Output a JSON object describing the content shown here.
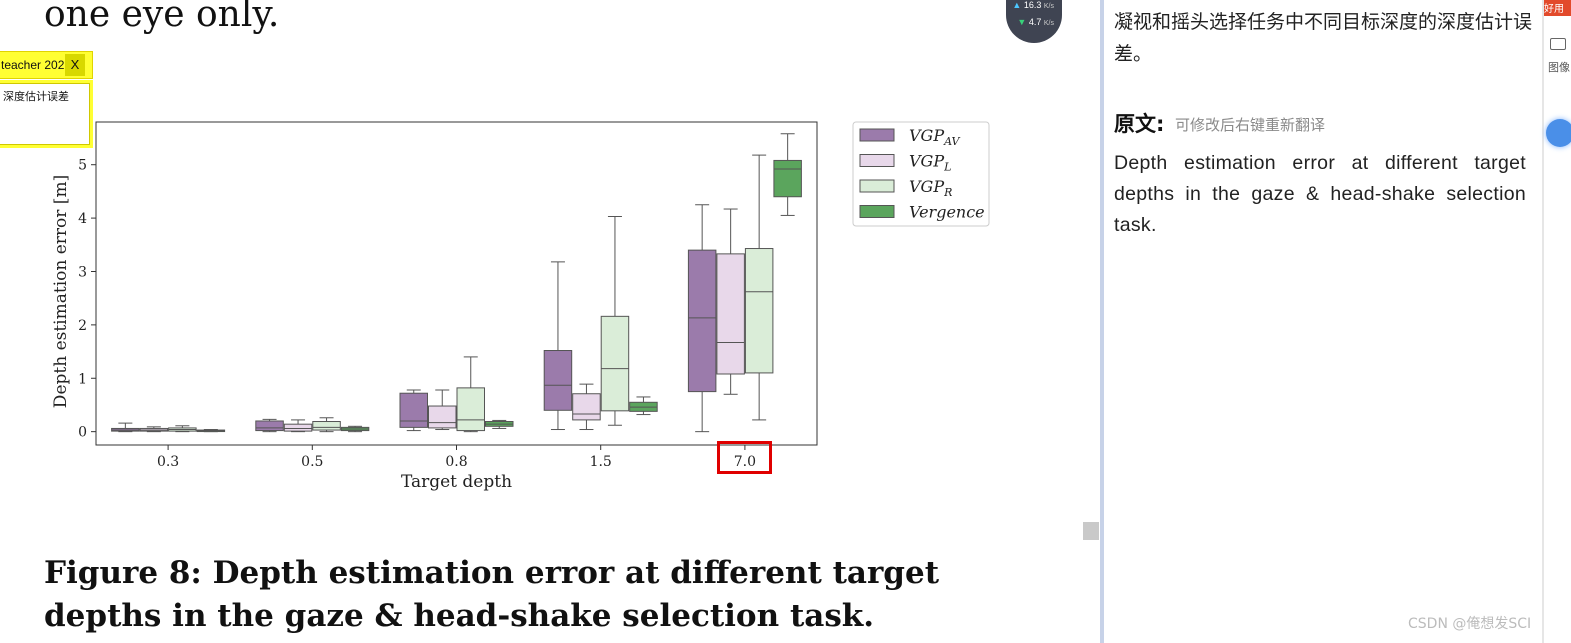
{
  "pdf": {
    "previous_line": "one eye only.",
    "caption": "Figure 8: Depth estimation error at different target depths in the gaze & head-shake selection task.",
    "note": {
      "title": "teacher 202",
      "close_label": "X",
      "content": "深度估计误差"
    },
    "speed_meter": {
      "upload": "16.3",
      "download": "4.7",
      "unit": "K/s",
      "up_arrow": "▲",
      "down_arrow": "▼"
    }
  },
  "translate_panel": {
    "translation": "凝视和摇头选择任务中不同目标深度的深度估计误差。",
    "original_label": "原文:",
    "original_hint": "可修改后右键重新翻译",
    "original_text": "Depth estimation error at different target depths in the gaze & head-shake selection task."
  },
  "right_toolbar": {
    "top_text": "好用",
    "image_label": "图像"
  },
  "watermark": "CSDN @俺想发SCI",
  "chart_data": {
    "type": "box",
    "xlabel": "Target depth",
    "ylabel": "Depth estimation error [m]",
    "categories": [
      "0.3",
      "0.5",
      "0.8",
      "1.5",
      "7.0"
    ],
    "highlighted_category": "7.0",
    "yticks": [
      0,
      1,
      2,
      3,
      4,
      5
    ],
    "ylim": [
      -0.25,
      5.8
    ],
    "legend_position": "top-right",
    "series": [
      {
        "name": "VGP",
        "sub": "AV",
        "color": "#9b7bab",
        "boxes": [
          {
            "low": 0.0,
            "q1": 0.01,
            "median": 0.03,
            "q3": 0.06,
            "high": 0.16
          },
          {
            "low": 0.0,
            "q1": 0.02,
            "median": 0.07,
            "q3": 0.2,
            "high": 0.23
          },
          {
            "low": 0.02,
            "q1": 0.08,
            "median": 0.2,
            "q3": 0.72,
            "high": 0.78
          },
          {
            "low": 0.04,
            "q1": 0.4,
            "median": 0.87,
            "q3": 1.52,
            "high": 3.18
          },
          {
            "low": 0.0,
            "q1": 0.75,
            "median": 2.13,
            "q3": 3.4,
            "high": 4.25
          }
        ]
      },
      {
        "name": "VGP",
        "sub": "L",
        "color": "#e8d8ea",
        "boxes": [
          {
            "low": 0.0,
            "q1": 0.01,
            "median": 0.03,
            "q3": 0.06,
            "high": 0.09
          },
          {
            "low": 0.0,
            "q1": 0.01,
            "median": 0.06,
            "q3": 0.14,
            "high": 0.22
          },
          {
            "low": 0.04,
            "q1": 0.07,
            "median": 0.17,
            "q3": 0.48,
            "high": 0.78
          },
          {
            "low": 0.04,
            "q1": 0.22,
            "median": 0.33,
            "q3": 0.71,
            "high": 0.89
          },
          {
            "low": 0.7,
            "q1": 1.08,
            "median": 1.67,
            "q3": 3.33,
            "high": 4.17
          }
        ]
      },
      {
        "name": "VGP",
        "sub": "R",
        "color": "#daedd8",
        "boxes": [
          {
            "low": 0.0,
            "q1": 0.01,
            "median": 0.04,
            "q3": 0.07,
            "high": 0.11
          },
          {
            "low": 0.0,
            "q1": 0.03,
            "median": 0.08,
            "q3": 0.19,
            "high": 0.26
          },
          {
            "low": 0.0,
            "q1": 0.02,
            "median": 0.22,
            "q3": 0.82,
            "high": 1.4
          },
          {
            "low": 0.12,
            "q1": 0.39,
            "median": 1.18,
            "q3": 2.16,
            "high": 4.03
          },
          {
            "low": 0.22,
            "q1": 1.1,
            "median": 2.62,
            "q3": 3.43,
            "high": 5.18
          }
        ]
      },
      {
        "name": "Vergence",
        "sub": "",
        "color": "#5ba55d",
        "boxes": [
          {
            "low": 0.0,
            "q1": 0.01,
            "median": 0.02,
            "q3": 0.03,
            "high": 0.04
          },
          {
            "low": 0.0,
            "q1": 0.02,
            "median": 0.05,
            "q3": 0.08,
            "high": 0.1
          },
          {
            "low": 0.06,
            "q1": 0.1,
            "median": 0.14,
            "q3": 0.19,
            "high": 0.21
          },
          {
            "low": 0.32,
            "q1": 0.38,
            "median": 0.46,
            "q3": 0.55,
            "high": 0.65
          },
          {
            "low": 4.05,
            "q1": 4.4,
            "median": 4.92,
            "q3": 5.08,
            "high": 5.58
          }
        ]
      }
    ]
  }
}
